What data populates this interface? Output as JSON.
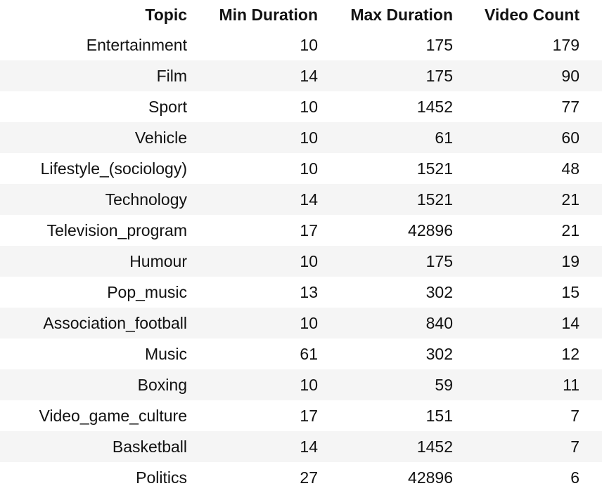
{
  "columns": [
    "Topic",
    "Min Duration",
    "Max Duration",
    "Video Count"
  ],
  "rows": [
    [
      "Entertainment",
      "10",
      "175",
      "179"
    ],
    [
      "Film",
      "14",
      "175",
      "90"
    ],
    [
      "Sport",
      "10",
      "1452",
      "77"
    ],
    [
      "Vehicle",
      "10",
      "61",
      "60"
    ],
    [
      "Lifestyle_(sociology)",
      "10",
      "1521",
      "48"
    ],
    [
      "Technology",
      "14",
      "1521",
      "21"
    ],
    [
      "Television_program",
      "17",
      "42896",
      "21"
    ],
    [
      "Humour",
      "10",
      "175",
      "19"
    ],
    [
      "Pop_music",
      "13",
      "302",
      "15"
    ],
    [
      "Association_football",
      "10",
      "840",
      "14"
    ],
    [
      "Music",
      "61",
      "302",
      "12"
    ],
    [
      "Boxing",
      "10",
      "59",
      "11"
    ],
    [
      "Video_game_culture",
      "17",
      "151",
      "7"
    ],
    [
      "Basketball",
      "14",
      "1452",
      "7"
    ],
    [
      "Politics",
      "27",
      "42896",
      "6"
    ]
  ]
}
